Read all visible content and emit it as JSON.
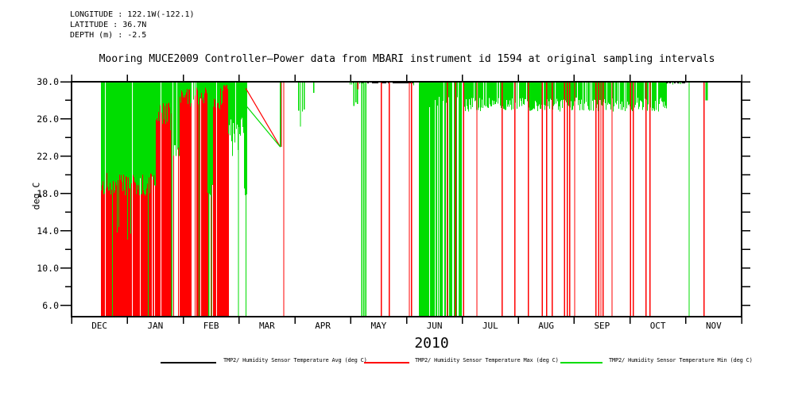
{
  "page": {
    "header": {
      "longitude": "LONGITUDE : 122.1W(-122.1)",
      "latitude": "LATITUDE : 36.7N",
      "depth": "DEPTH (m) : -2.5"
    },
    "title": "Mooring MUCE2009 Controller–Power data from MBARI instrument id 1594 at original sampling intervals",
    "year": "2010"
  },
  "chart_data": {
    "type": "line",
    "title": "Mooring MUCE2009 Controller–Power data from MBARI instrument id 1594 at original sampling intervals",
    "ylabel": "deg C",
    "xlabel": "2010",
    "ylim": [
      4.8,
      30.0
    ],
    "grid": false,
    "legend_position": "bottom",
    "ytick_major": [
      6,
      10,
      14,
      18,
      22,
      26,
      30
    ],
    "ytick_labels": [
      "6.0",
      "10.0",
      "14.0",
      "18.0",
      "22.0",
      "26.0",
      "30.0"
    ],
    "ytick_minor": [
      8,
      12,
      16,
      20,
      24,
      28
    ],
    "right_ticks_every_deg": 2,
    "months": [
      "DEC",
      "JAN",
      "FEB",
      "MAR",
      "APR",
      "MAY",
      "JUN",
      "JUL",
      "AUG",
      "SEP",
      "OCT",
      "NOV"
    ],
    "series": [
      {
        "name": "TMP2/ Humidity Sensor Temperature Avg (deg C)",
        "color": "#000000"
      },
      {
        "name": "TMP2/ Humidity Sensor Temperature Max (deg C)",
        "color": "#ff0000"
      },
      {
        "name": "TMP2/ Humidity Sensor Temperature Min (deg C)",
        "color": "#00dd00"
      }
    ],
    "colors": {
      "avg": "#000000",
      "max": "#ff0000",
      "min": "#00dd00",
      "axis": "#000000"
    },
    "seed": 1594,
    "dense_regions": [
      {
        "m0": 0.527,
        "m1": 1.51,
        "gLo": 17.8,
        "gHi": 20.3,
        "redProb": 0.93,
        "gapProb": 0.06,
        "gFullProb": 0.02,
        "deepProb": 0.06,
        "deepLo": 13.0,
        "deepHi": 16.0,
        "redThinProb": 0
      },
      {
        "m0": 1.51,
        "m1": 1.79,
        "gLo": 24.8,
        "gHi": 27.8,
        "redProb": 0.95,
        "gapProb": 0.03,
        "gFullProb": 0.02,
        "deepProb": 0,
        "deepLo": 0,
        "deepHi": 0,
        "redThinProb": 0
      },
      {
        "m0": 1.79,
        "m1": 1.93,
        "gLo": 21.3,
        "gHi": 23.2,
        "redProb": 0.55,
        "gapProb": 0.15,
        "gFullProb": 0.25,
        "deepProb": 0,
        "deepLo": 0,
        "deepHi": 0,
        "redThinProb": 0
      },
      {
        "m0": 1.93,
        "m1": 2.13,
        "gLo": 27.2,
        "gHi": 29.3,
        "redProb": 0.95,
        "gapProb": 0.04,
        "gFullProb": 0.02,
        "deepProb": 0,
        "deepLo": 0,
        "deepHi": 0,
        "redThinProb": 0
      },
      {
        "m0": 2.13,
        "m1": 2.23,
        "gLo": 27.0,
        "gHi": 29.0,
        "redProb": 0.45,
        "gapProb": 0.5,
        "gFullProb": 0.02,
        "deepProb": 0,
        "deepLo": 0,
        "deepHi": 0,
        "redThinProb": 0
      },
      {
        "m0": 2.23,
        "m1": 2.44,
        "gLo": 27.5,
        "gHi": 29.4,
        "redProb": 0.95,
        "gapProb": 0.04,
        "gFullProb": 0.02,
        "deepProb": 0,
        "deepLo": 0,
        "deepHi": 0,
        "redThinProb": 0
      },
      {
        "m0": 2.44,
        "m1": 2.54,
        "gLo": 16.8,
        "gHi": 20.0,
        "redProb": 0.5,
        "gapProb": 0.1,
        "gFullProb": 0.3,
        "deepProb": 0,
        "deepLo": 0,
        "deepHi": 0,
        "redThinProb": 0
      },
      {
        "m0": 2.54,
        "m1": 2.71,
        "gLo": 27.0,
        "gHi": 29.3,
        "redProb": 0.9,
        "gapProb": 0.08,
        "gFullProb": 0.02,
        "deepProb": 0,
        "deepLo": 0,
        "deepHi": 0,
        "redThinProb": 0
      },
      {
        "m0": 2.71,
        "m1": 2.8,
        "gLo": 29.2,
        "gHi": 29.9,
        "redProb": 1.0,
        "gapProb": 0.05,
        "gFullProb": 0,
        "deepProb": 0,
        "deepLo": 0,
        "deepHi": 0,
        "redThinProb": 0
      },
      {
        "m0": 2.8,
        "m1": 3.09,
        "gLo": 24.2,
        "gHi": 26.3,
        "redProb": 0,
        "gapProb": 0.12,
        "gFullProb": 0.04,
        "deepProb": 0.18,
        "deepLo": 21.0,
        "deepHi": 24.0,
        "redThinProb": 0.04
      },
      {
        "m0": 3.09,
        "m1": 3.135,
        "gLo": 17.8,
        "gHi": 18.6,
        "redProb": 0,
        "gapProb": 0,
        "gFullProb": 0.05,
        "deepProb": 0,
        "deepLo": 0,
        "deepHi": 0,
        "redThinProb": 0
      }
    ],
    "jun_cluster": {
      "m0": 6.2,
      "m1": 6.97,
      "fullProb": 0.72,
      "hangLo": 27.2,
      "hangHi": 28.6,
      "gapProb": 0.06
    },
    "hang_band": {
      "m0": 7.02,
      "m1": 10.65,
      "bottomLo": 26.8,
      "bottomHi": 28.3,
      "gapProb": 0.16
    },
    "dash_regions": [
      {
        "m0": 4.98,
        "m1": 6.16,
        "blackProb": 0.5,
        "greenProb": 0.12
      },
      {
        "m0": 10.65,
        "m1": 10.99,
        "blackProb": 0.4,
        "greenProb": 0.3
      }
    ],
    "red_full_lines": [
      3.8,
      5.55,
      5.69,
      6.05,
      6.09,
      6.73,
      6.88,
      7.02,
      7.26,
      7.71,
      7.94,
      8.18,
      8.43,
      8.51,
      8.61,
      8.83,
      8.88,
      8.92,
      9.01,
      9.39,
      9.44,
      9.48,
      9.52,
      9.68,
      10.01,
      10.06,
      10.29,
      10.36,
      11.33
    ],
    "green_full_lines": [
      1.795,
      2.46,
      2.505,
      2.99,
      5.2,
      5.235,
      5.27,
      11.06
    ],
    "green_hangs": [
      [
        4.07,
        26.9
      ],
      [
        4.1,
        25.2
      ],
      [
        4.135,
        26.8
      ],
      [
        4.17,
        27.0
      ],
      [
        4.34,
        28.8
      ],
      [
        5.055,
        27.4
      ],
      [
        5.09,
        27.8
      ],
      [
        5.12,
        27.6
      ],
      [
        11.375,
        28.0,
        3
      ]
    ],
    "red_hangs": [
      [
        5.13,
        29.2
      ]
    ],
    "gap_lines": {
      "red": [
        [
          3.12,
          29.3
        ],
        [
          3.74,
          23.0
        ]
      ],
      "green": [
        [
          3.13,
          27.4
        ],
        [
          3.74,
          23.0
        ]
      ],
      "return_x": 3.74,
      "return_top": 30.0,
      "return_bottom": 23.0
    }
  }
}
